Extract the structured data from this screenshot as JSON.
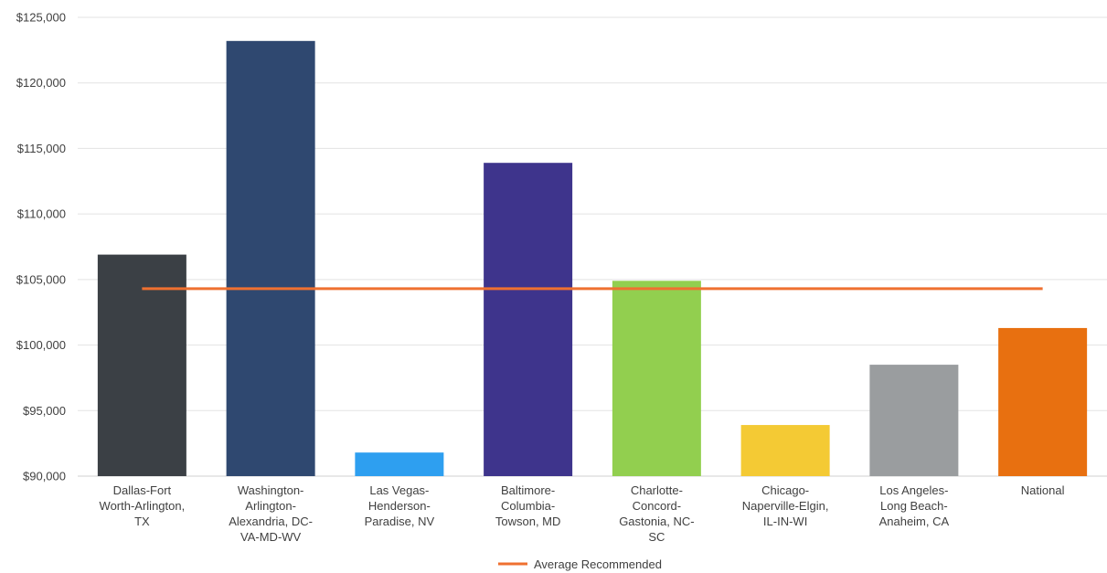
{
  "chart_data": {
    "type": "bar",
    "categories": [
      [
        "Dallas-Fort",
        "Worth-Arlington,",
        "TX"
      ],
      [
        "Washington-",
        "Arlington-",
        "Alexandria, DC-",
        "VA-MD-WV"
      ],
      [
        "Las Vegas-",
        "Henderson-",
        "Paradise, NV"
      ],
      [
        "Baltimore-",
        "Columbia-",
        "Towson, MD"
      ],
      [
        "Charlotte-",
        "Concord-",
        "Gastonia, NC-",
        "SC"
      ],
      [
        "Chicago-",
        "Naperville-Elgin,",
        "IL-IN-WI"
      ],
      [
        "Los Angeles-",
        "Long Beach-",
        "Anaheim, CA"
      ],
      [
        "National"
      ]
    ],
    "values": [
      106900,
      123200,
      91800,
      113900,
      104900,
      93900,
      98500,
      101300
    ],
    "bar_colors": [
      "#3b4045",
      "#2f4870",
      "#2e9ff0",
      "#3e348c",
      "#92cf4f",
      "#f4ca34",
      "#9a9d9f",
      "#e87010"
    ],
    "line_series": {
      "name": "Average Recommended",
      "value": 104300,
      "color": "#ef7030"
    },
    "y_ticks": [
      "$90,000",
      "$95,000",
      "$100,000",
      "$105,000",
      "$110,000",
      "$115,000",
      "$120,000",
      "$125,000"
    ],
    "ylim": [
      90000,
      125000
    ],
    "grid": true,
    "legend_position": "bottom",
    "title": "",
    "xlabel": "",
    "ylabel": ""
  }
}
